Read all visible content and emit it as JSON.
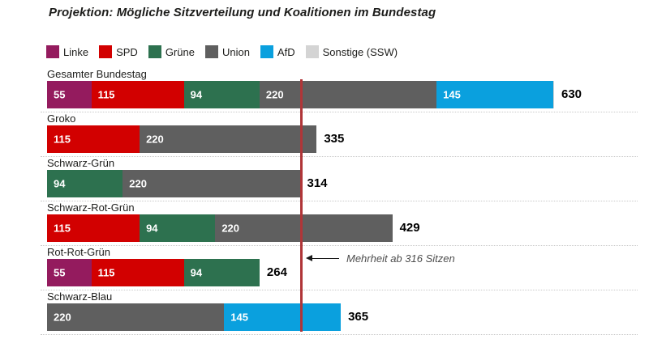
{
  "title": "Projektion: Mögliche Sitzverteilung und Koalitionen im Bundestag",
  "colors": {
    "linke": "#941b5e",
    "spd": "#d20000",
    "gruene": "#2d714f",
    "union": "#5f5f5f",
    "afd": "#0aa0de",
    "sonstige": "#d4d4d4",
    "majority_line": "#b03538",
    "background": "#ffffff"
  },
  "legend": [
    {
      "key": "linke",
      "label": "Linke"
    },
    {
      "key": "spd",
      "label": "SPD"
    },
    {
      "key": "gruene",
      "label": "Grüne"
    },
    {
      "key": "union",
      "label": "Union"
    },
    {
      "key": "afd",
      "label": "AfD"
    },
    {
      "key": "sonstige",
      "label": "Sonstige (SSW)"
    }
  ],
  "annotation": {
    "text": "Mehrheit ab 316 Sitzen"
  },
  "chart_data": {
    "type": "bar",
    "orientation": "horizontal",
    "stacked": true,
    "xlim": [
      0,
      630
    ],
    "grid": false,
    "legend_position": "top",
    "majority_threshold": 316,
    "categories": [
      "Gesamter Bundestag",
      "Groko",
      "Schwarz-Grün",
      "Schwarz-Rot-Grün",
      "Rot-Rot-Grün",
      "Schwarz-Blau"
    ],
    "rows": [
      {
        "label": "Gesamter Bundestag",
        "total": 630,
        "segments": [
          {
            "party": "linke",
            "seats": 55
          },
          {
            "party": "spd",
            "seats": 115
          },
          {
            "party": "gruene",
            "seats": 94
          },
          {
            "party": "union",
            "seats": 220
          },
          {
            "party": "afd",
            "seats": 145
          },
          {
            "party": "sonstige",
            "seats": 1
          }
        ]
      },
      {
        "label": "Groko",
        "total": 335,
        "segments": [
          {
            "party": "spd",
            "seats": 115
          },
          {
            "party": "union",
            "seats": 220
          }
        ]
      },
      {
        "label": "Schwarz-Grün",
        "total": 314,
        "segments": [
          {
            "party": "gruene",
            "seats": 94
          },
          {
            "party": "union",
            "seats": 220
          }
        ]
      },
      {
        "label": "Schwarz-Rot-Grün",
        "total": 429,
        "segments": [
          {
            "party": "spd",
            "seats": 115
          },
          {
            "party": "gruene",
            "seats": 94
          },
          {
            "party": "union",
            "seats": 220
          }
        ]
      },
      {
        "label": "Rot-Rot-Grün",
        "total": 264,
        "segments": [
          {
            "party": "linke",
            "seats": 55
          },
          {
            "party": "spd",
            "seats": 115
          },
          {
            "party": "gruene",
            "seats": 94
          }
        ]
      },
      {
        "label": "Schwarz-Blau",
        "total": 365,
        "segments": [
          {
            "party": "union",
            "seats": 220
          },
          {
            "party": "afd",
            "seats": 145
          }
        ]
      }
    ]
  }
}
